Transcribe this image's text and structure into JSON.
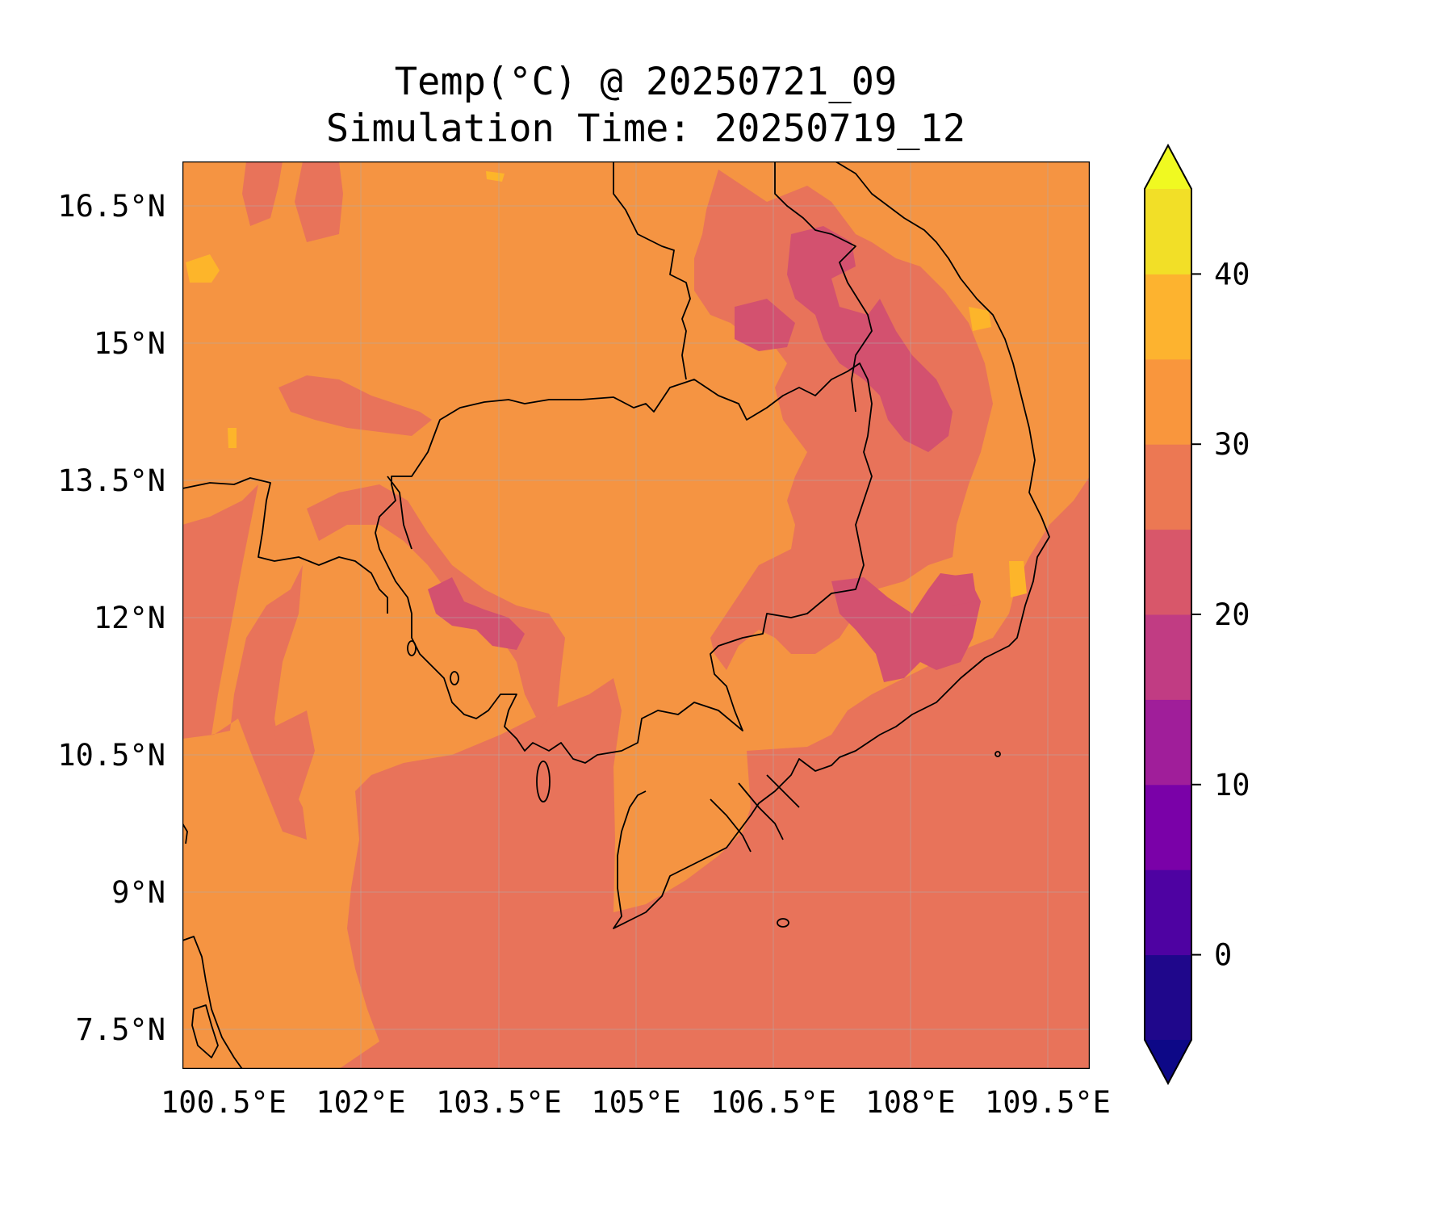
{
  "map": {
    "title": "Temp(°C) @ 20250721_09",
    "subtitle": "Simulation Time: 20250719_12",
    "lon_ticks": [
      "100.5°E",
      "102°E",
      "103.5°E",
      "105°E",
      "106.5°E",
      "108°E",
      "109.5°E"
    ],
    "lat_ticks": [
      "16.5°N",
      "15°N",
      "13.5°N",
      "12°N",
      "10.5°N",
      "9°N",
      "7.5°N"
    ],
    "lon_range": [
      100.5,
      110.4
    ],
    "lat_range": [
      7.1,
      17.0
    ],
    "fill_colors": {
      "band_25_30": "#e8735a",
      "band_30_35": "#f59442",
      "band_20_25": "#d3516f",
      "band_35_40": "#fdb52a",
      "coastline": "#000000"
    }
  },
  "colorbar": {
    "tick_labels": [
      "40",
      "30",
      "20",
      "10",
      "0"
    ],
    "tick_values": [
      40,
      30,
      20,
      10,
      0
    ],
    "levels": [
      -5,
      0,
      5,
      10,
      15,
      20,
      25,
      30,
      35,
      40,
      45
    ],
    "band_colors": [
      "#1f078b",
      "#4e02a2",
      "#7a01a8",
      "#a01e9a",
      "#c13c83",
      "#d8576a",
      "#ec7853",
      "#f9963d",
      "#fdb32f",
      "#f2df27"
    ],
    "extend_low_color": "#0d0887",
    "extend_high_color": "#f0f921"
  }
}
